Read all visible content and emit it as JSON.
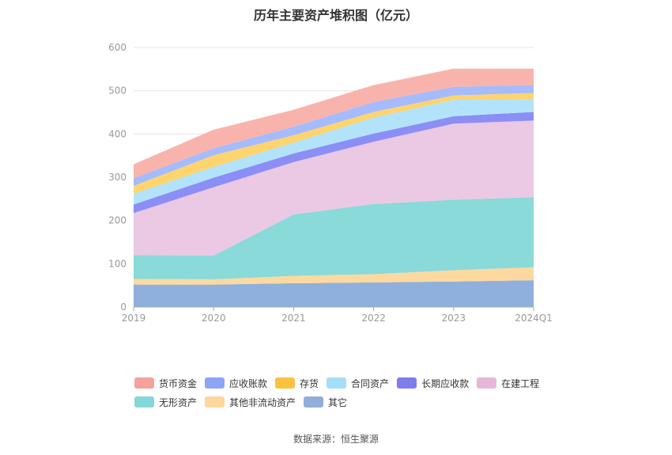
{
  "chart_data": {
    "type": "area",
    "title": "历年主要资产堆积图（亿元）",
    "categories": [
      "2019",
      "2020",
      "2021",
      "2022",
      "2023",
      "2024Q1"
    ],
    "ylim": [
      0,
      600
    ],
    "yticks": [
      0,
      100,
      200,
      300,
      400,
      500,
      600
    ],
    "grid": true,
    "legend_position": "bottom",
    "series": [
      {
        "name": "其它",
        "color": "#8fb0dc",
        "values": [
          52,
          52,
          55,
          57,
          59,
          62
        ]
      },
      {
        "name": "其他非流动资产",
        "color": "#fdd9a0",
        "values": [
          13,
          12,
          17,
          19,
          26,
          30
        ]
      },
      {
        "name": "无形资产",
        "color": "#89dad9",
        "values": [
          55,
          55,
          142,
          162,
          163,
          162
        ]
      },
      {
        "name": "在建工程",
        "color": "#ebc8e3",
        "values": [
          97,
          158,
          121,
          144,
          176,
          177
        ]
      },
      {
        "name": "长期应收款",
        "color": "#8b8ef5",
        "values": [
          20,
          22,
          20,
          19,
          17,
          20
        ]
      },
      {
        "name": "合同资产",
        "color": "#b2e3fa",
        "values": [
          25,
          25,
          25,
          37,
          38,
          30
        ]
      },
      {
        "name": "存货",
        "color": "#fed46e",
        "values": [
          18,
          27,
          17,
          13,
          10,
          14
        ]
      },
      {
        "name": "应收账款",
        "color": "#a6bbfc",
        "values": [
          18,
          16,
          20,
          23,
          20,
          18
        ]
      },
      {
        "name": "货币资金",
        "color": "#f9b3ad",
        "values": [
          32,
          43,
          39,
          39,
          42,
          38
        ]
      }
    ],
    "legend_order": [
      "货币资金",
      "应收账款",
      "存货",
      "合同资产",
      "长期应收款",
      "在建工程",
      "无形资产",
      "其他非流动资产",
      "其它"
    ],
    "legend_colors": [
      "#f4a39b",
      "#8ca5f7",
      "#fcc13f",
      "#a4def8",
      "#7f7cf0",
      "#e6b7d9",
      "#84d7d6",
      "#fdd79e",
      "#91aed8"
    ]
  },
  "source_text": "数据来源：恒生聚源"
}
